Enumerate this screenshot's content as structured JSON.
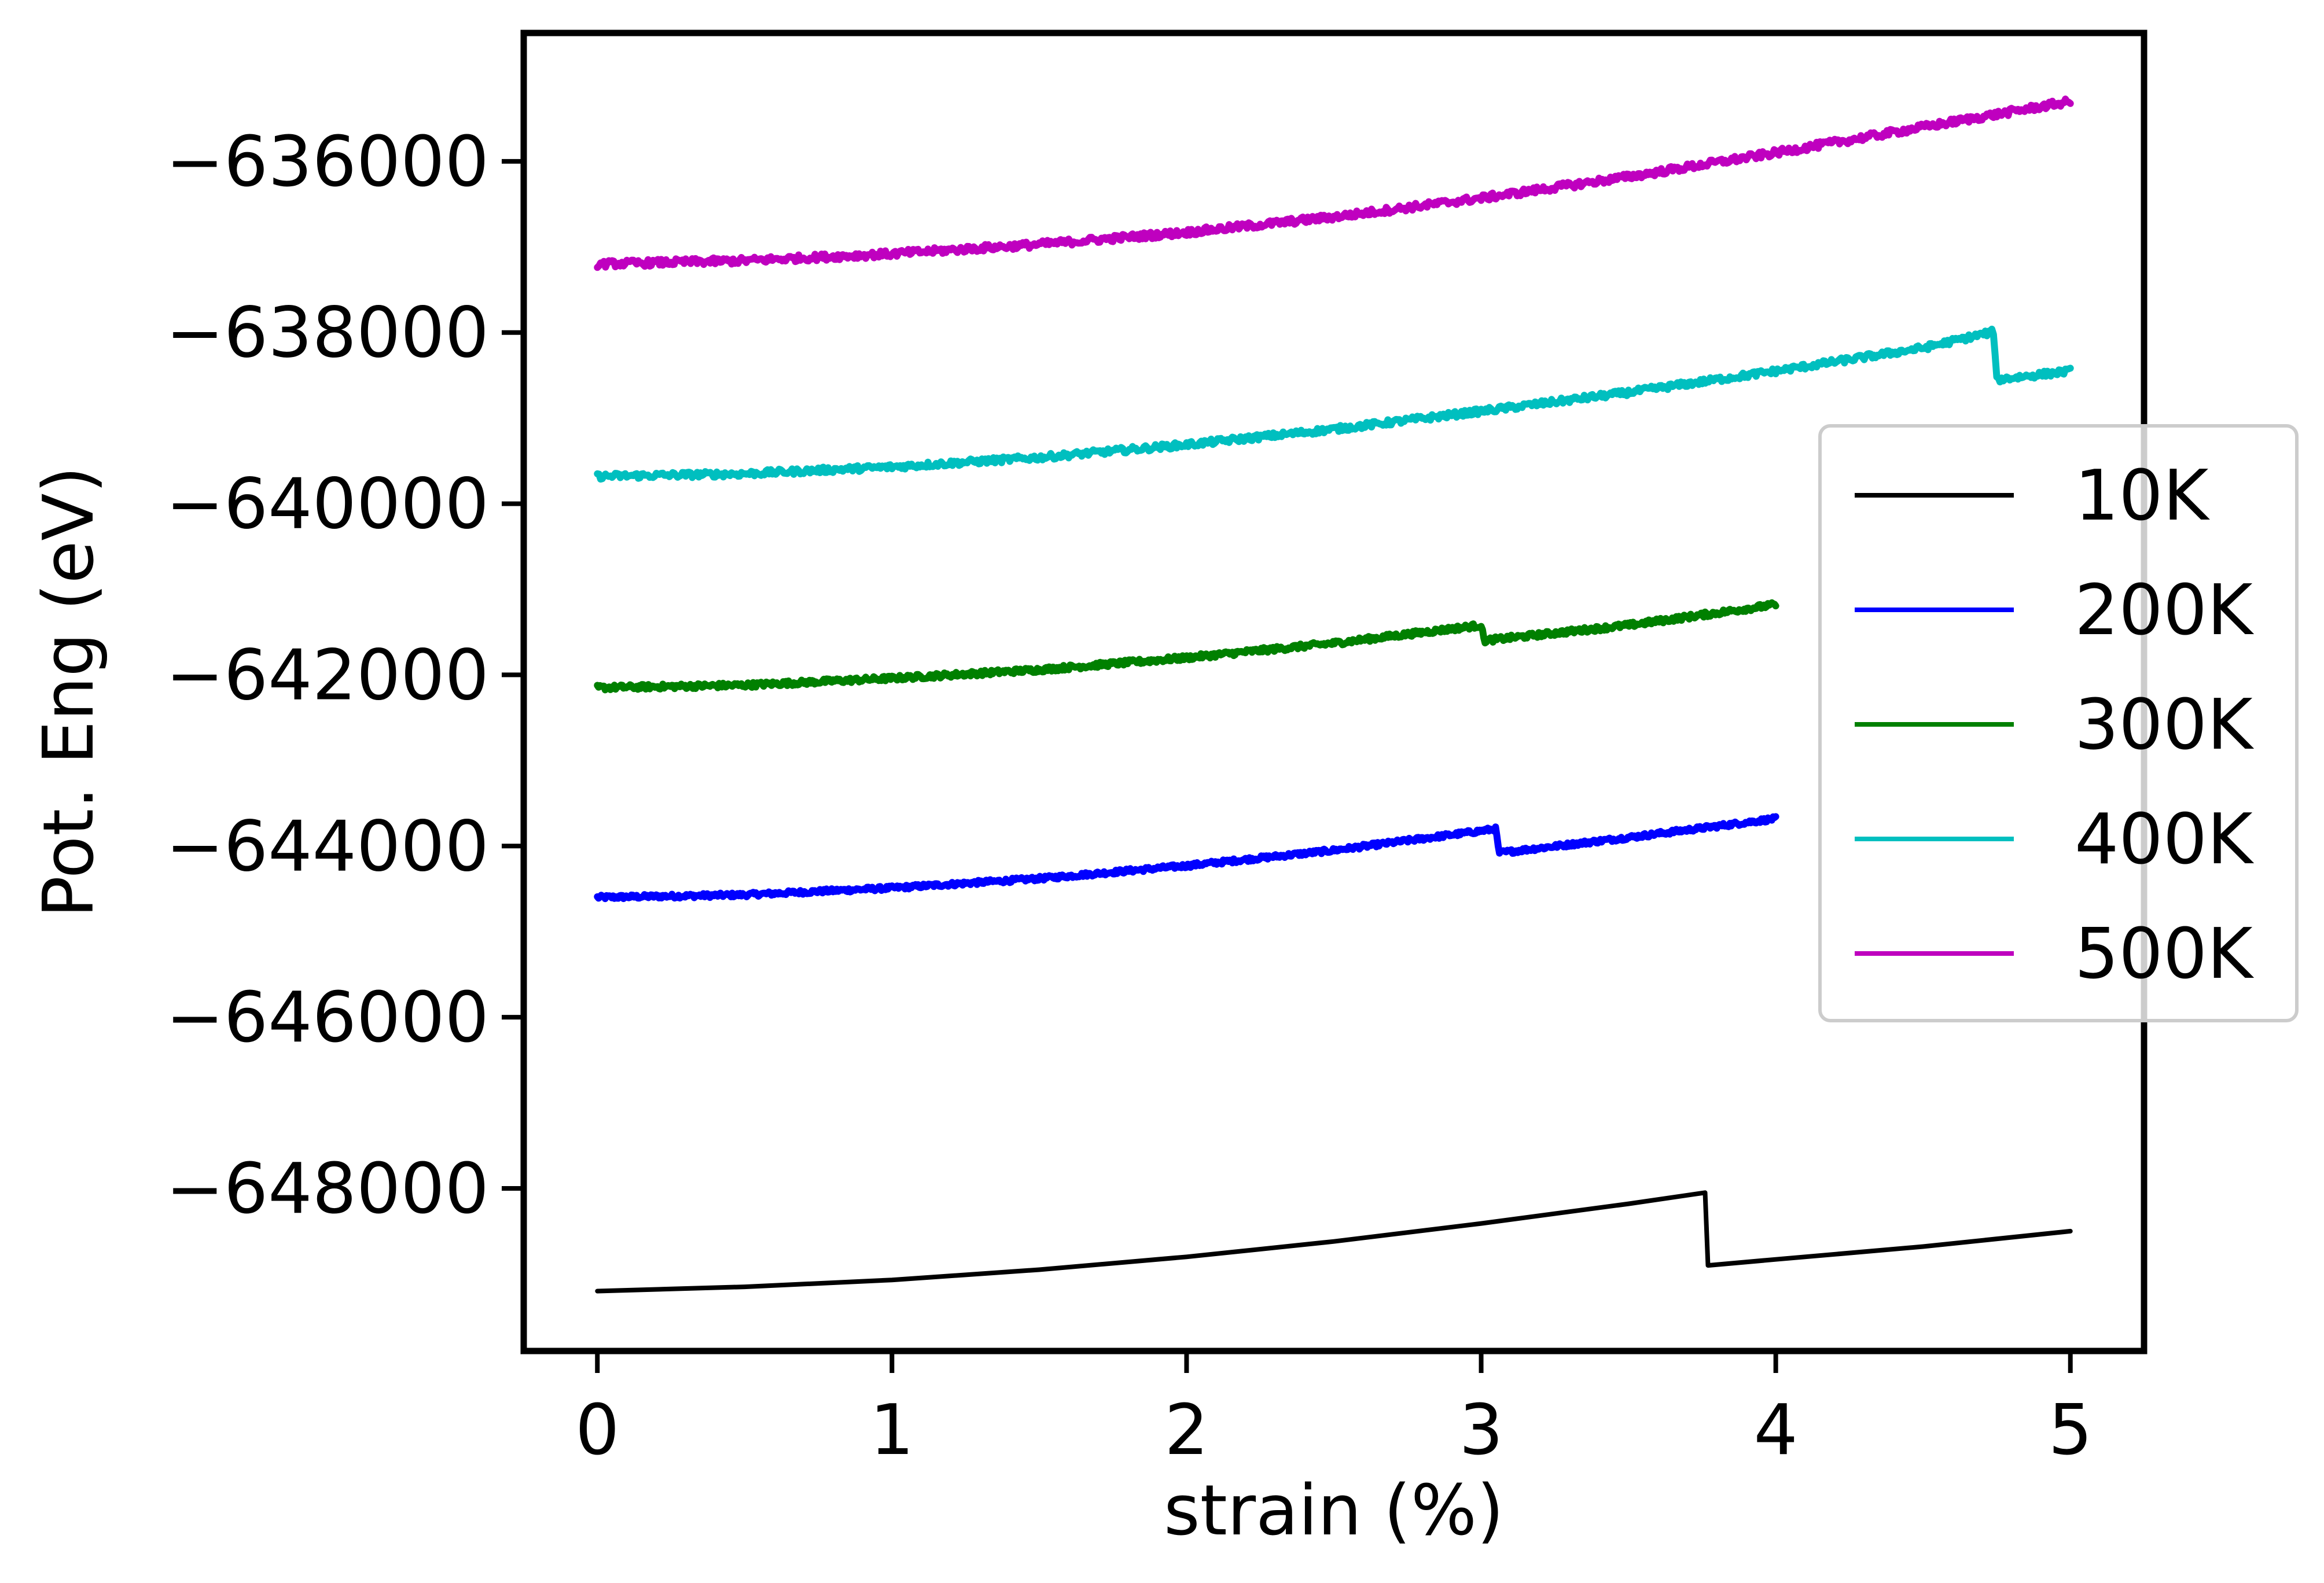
{
  "chart_data": {
    "type": "line",
    "title": "",
    "xlabel": "strain (%)",
    "ylabel": "Pot. Eng (eV)",
    "xlim": [
      -0.25,
      5.25
    ],
    "ylim": [
      -649900,
      -634500
    ],
    "xticks": [
      0,
      1,
      2,
      3,
      4,
      5
    ],
    "xtick_labels": [
      "0",
      "1",
      "2",
      "3",
      "4",
      "5"
    ],
    "yticks": [
      -636000,
      -638000,
      -640000,
      -642000,
      -644000,
      -646000,
      -648000
    ],
    "ytick_labels": [
      "−636000",
      "−638000",
      "−640000",
      "−642000",
      "−644000",
      "−646000",
      "−648000"
    ],
    "grid": false,
    "legend_position": "center-right",
    "series": [
      {
        "name": "10K",
        "color": "#000000",
        "noisy": false,
        "x": [
          0,
          0.5,
          1,
          1.5,
          2,
          2.5,
          3,
          3.5,
          3.76,
          3.77,
          4,
          4.5,
          5
        ],
        "y": [
          -649200,
          -649150,
          -649070,
          -648950,
          -648800,
          -648620,
          -648410,
          -648180,
          -648050,
          -648900,
          -648830,
          -648680,
          -648500
        ]
      },
      {
        "name": "200K",
        "color": "#0000ff",
        "noisy": true,
        "noise_amp": 25,
        "x": [
          0,
          0.5,
          1,
          1.5,
          2,
          2.5,
          3.05,
          3.06,
          3.5,
          4
        ],
        "y": [
          -644600,
          -644570,
          -644490,
          -644380,
          -644230,
          -644050,
          -643800,
          -644080,
          -643900,
          -643680
        ]
      },
      {
        "name": "300K",
        "color": "#008000",
        "noisy": true,
        "noise_amp": 30,
        "x": [
          0,
          0.5,
          1,
          1.5,
          2,
          2.5,
          3.0,
          3.01,
          3.5,
          4
        ],
        "y": [
          -642150,
          -642120,
          -642040,
          -641940,
          -641800,
          -641630,
          -641420,
          -641600,
          -641420,
          -641180
        ]
      },
      {
        "name": "400K",
        "color": "#00bfbf",
        "noisy": true,
        "noise_amp": 35,
        "x": [
          0,
          0.5,
          1,
          1.5,
          2,
          2.5,
          3,
          3.5,
          4,
          4.5,
          4.74,
          4.75,
          5
        ],
        "y": [
          -639680,
          -639650,
          -639570,
          -639460,
          -639310,
          -639130,
          -638920,
          -638700,
          -638450,
          -638180,
          -637990,
          -638550,
          -638450
        ]
      },
      {
        "name": "500K",
        "color": "#bf00bf",
        "noisy": true,
        "noise_amp": 40,
        "x": [
          0,
          0.5,
          1,
          1.5,
          2,
          2.5,
          3,
          3.5,
          4,
          4.5,
          5
        ],
        "y": [
          -637200,
          -637160,
          -637080,
          -636970,
          -636830,
          -636650,
          -636430,
          -636180,
          -635900,
          -635600,
          -635300
        ]
      }
    ]
  }
}
